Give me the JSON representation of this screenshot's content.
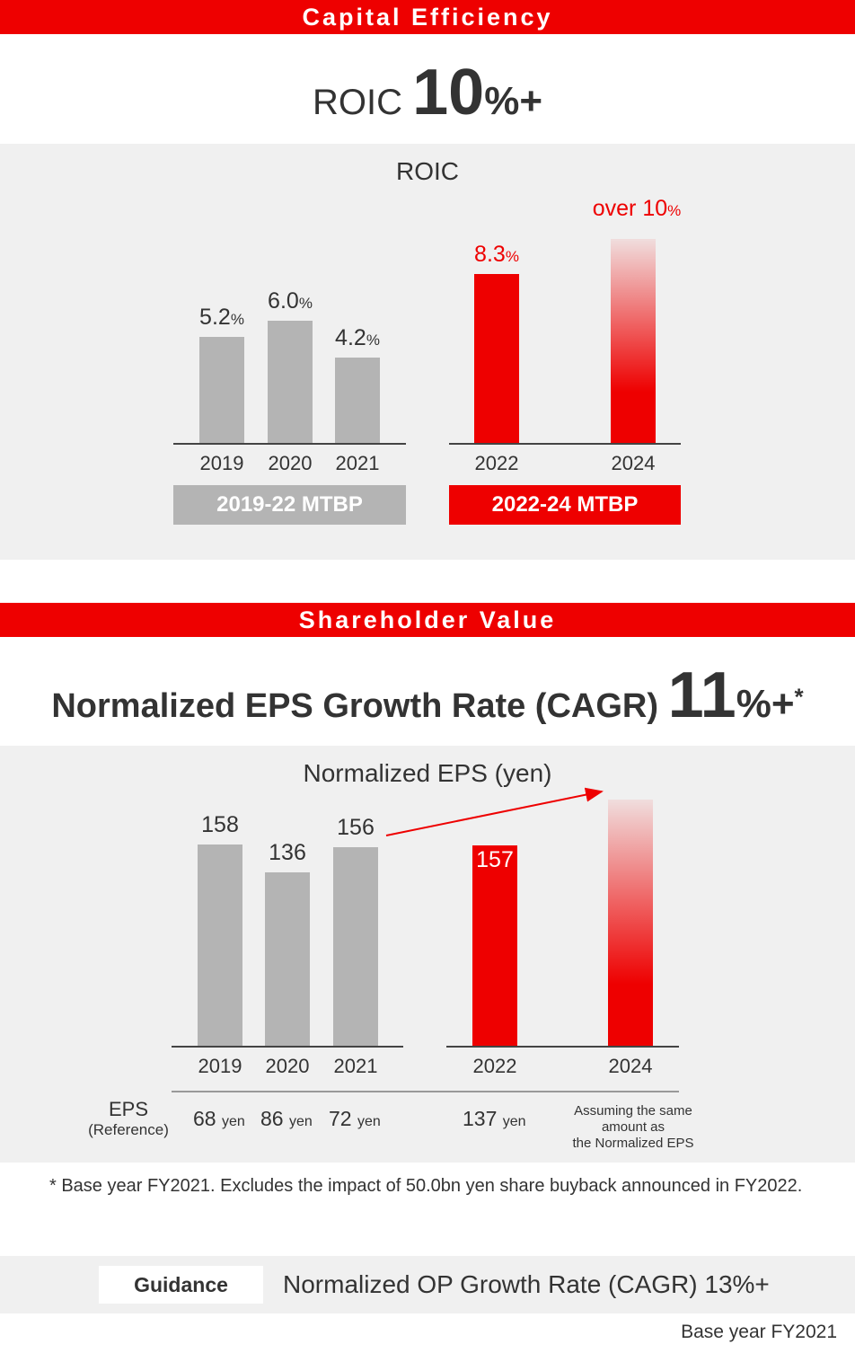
{
  "colors": {
    "accent": "#ee0000",
    "past": "#b4b4b4",
    "panel": "#f0f0f0"
  },
  "capital": {
    "band": "Capital Efficiency",
    "headline": {
      "prefix": "ROIC",
      "big": "10",
      "suffix": "%",
      "plus": "+"
    },
    "chart_title": "ROIC"
  },
  "shareholder": {
    "band": "Shareholder Value",
    "headline": {
      "prefix": "Normalized EPS Growth Rate (CAGR)",
      "big": "11",
      "suffix": "%",
      "plus": "+",
      "mark": "*"
    },
    "chart_title": "Normalized EPS (yen)",
    "eps_label": "EPS",
    "eps_sub": "(Reference)",
    "eps_values": [
      {
        "num": "68",
        "unit": "yen"
      },
      {
        "num": "86",
        "unit": "yen"
      },
      {
        "num": "72",
        "unit": "yen"
      },
      {
        "num": "137",
        "unit": "yen"
      }
    ],
    "eps_2024_note": [
      "Assuming the same",
      "amount as",
      "the Normalized EPS"
    ],
    "footnote": "* Base year FY2021. Excludes the impact of 50.0bn yen share buyback announced in FY2022."
  },
  "guidance": {
    "label": "Guidance",
    "text": "Normalized OP Growth Rate (CAGR) 13%+",
    "base": "Base year FY2021"
  },
  "chart_data": [
    {
      "type": "bar",
      "title": "ROIC",
      "unit": "%",
      "groups": [
        "2019-22 MTBP",
        "2022-24 MTBP"
      ],
      "categories": [
        "2019",
        "2020",
        "2021",
        "2022",
        "2024"
      ],
      "values": [
        5.2,
        6.0,
        4.2,
        8.3,
        10
      ],
      "labels": [
        "5.2",
        "6.0",
        "4.2",
        "8.3",
        "over 10"
      ],
      "group_of": [
        0,
        0,
        0,
        1,
        1
      ],
      "target_index": 4
    },
    {
      "type": "bar",
      "title": "Normalized EPS (yen)",
      "unit": "yen",
      "categories": [
        "2019",
        "2020",
        "2021",
        "2022",
        "2024"
      ],
      "values": [
        158,
        136,
        156,
        157,
        null
      ],
      "labels": [
        "158",
        "136",
        "156",
        "157",
        ""
      ],
      "group_of": [
        0,
        0,
        0,
        1,
        1
      ],
      "target_index": 4,
      "arrow": "2021 to 2024"
    }
  ]
}
